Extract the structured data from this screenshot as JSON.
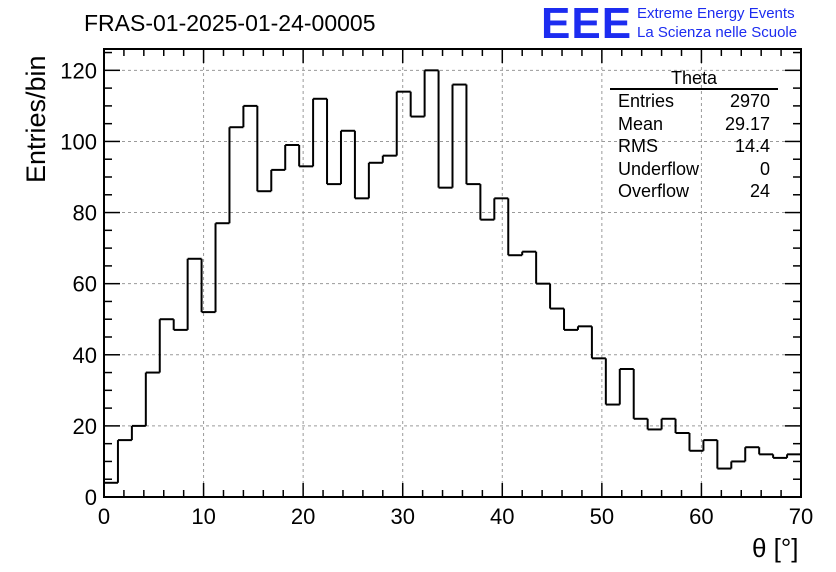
{
  "header": {
    "title": "FRAS-01-2025-01-24-00005",
    "logo_mark": "EEE",
    "logo_line1": "Extreme Energy Events",
    "logo_line2": "La Scienza nelle Scuole",
    "logo_color": "#1c2cf0"
  },
  "stats_box": {
    "title": "Theta",
    "rows": [
      {
        "label": "Entries",
        "value": "2970"
      },
      {
        "label": "Mean",
        "value": "29.17"
      },
      {
        "label": "RMS",
        "value": "14.4"
      },
      {
        "label": "Underflow",
        "value": "0"
      },
      {
        "label": "Overflow",
        "value": "24"
      }
    ]
  },
  "chart_data": {
    "type": "bar",
    "style": "step-histogram",
    "title": "FRAS-01-2025-01-24-00005",
    "xlabel": "θ [°]",
    "ylabel": "Entries/bin",
    "xlim": [
      0,
      70
    ],
    "ylim": [
      0,
      126
    ],
    "grid": true,
    "bin_width": 1.4,
    "bin_edges_start": 0,
    "values": [
      4,
      16,
      20,
      35,
      50,
      47,
      67,
      52,
      77,
      104,
      110,
      86,
      92,
      99,
      93,
      112,
      88,
      103,
      84,
      94,
      96,
      114,
      107,
      120,
      87,
      116,
      88,
      78,
      84,
      68,
      69,
      60,
      53,
      47,
      48,
      39,
      26,
      36,
      22,
      19,
      22,
      18,
      13,
      16,
      8,
      10,
      14,
      12,
      11,
      12
    ],
    "x_ticks": [
      0,
      10,
      20,
      30,
      40,
      50,
      60,
      70
    ],
    "y_ticks": [
      0,
      20,
      40,
      60,
      80,
      100,
      120
    ]
  }
}
